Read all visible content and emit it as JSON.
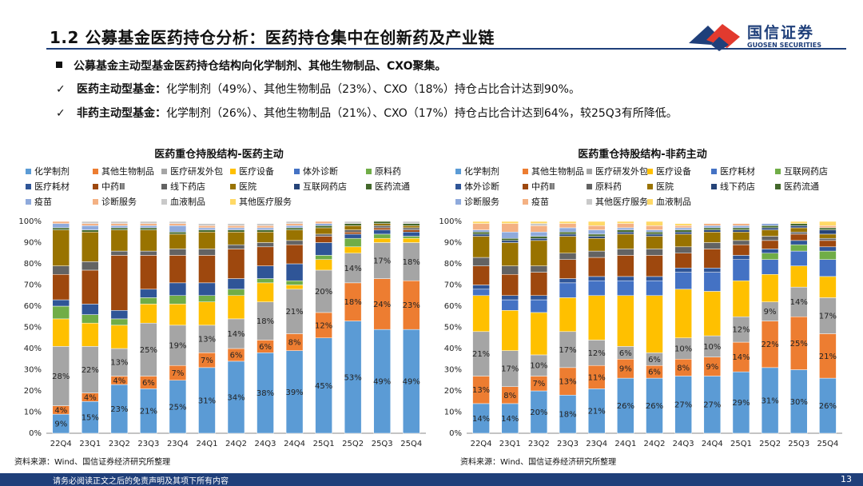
{
  "page": {
    "title": "1.2 公募基金医药持仓分析：医药持仓集中在创新药及产业链",
    "logo_cn": "国信证券",
    "logo_en": "GUOSEN SECURITIES",
    "bullets": [
      {
        "mark": "■",
        "bold": "公募基金主动型基金医药持仓结构向化学制剂、其他生物制品、CXO聚集。",
        "text": ""
      },
      {
        "mark": "✓",
        "bold": "医药主动型基金：",
        "text": "化学制剂（49%）、其他生物制品（23%）、CXO（18%）持仓占比合计达到90%。"
      },
      {
        "mark": "✓",
        "bold": "非药主动型基金：",
        "text": "化学制剂（26%）、其他生物制品（21%）、CXO（17%）持仓占比合计达到64%，较25Q3有所降低。"
      }
    ],
    "footer_disclaimer": "请务必阅读正文之后的免责声明及其项下所有内容",
    "page_number": "13",
    "colors": {
      "brand": "#1f3f7a",
      "logo_red": "#e23a2e"
    }
  },
  "chart_data": [
    {
      "type": "bar",
      "stacked": true,
      "title": "医药重仓持股结构-医药主动",
      "source": "资料来源：Wind、国信证券经济研究所整理",
      "categories": [
        "22Q4",
        "23Q1",
        "23Q2",
        "23Q3",
        "23Q4",
        "24Q1",
        "24Q2",
        "24Q3",
        "24Q4",
        "25Q1",
        "25Q2",
        "25Q3",
        "25Q4"
      ],
      "ylim": [
        0,
        100
      ],
      "yticks": [
        "0%",
        "10%",
        "20%",
        "30%",
        "40%",
        "50%",
        "60%",
        "70%",
        "80%",
        "90%",
        "100%"
      ],
      "grid": false,
      "legend_position": "top",
      "series": [
        {
          "name": "化学制剂",
          "color": "#5b9bd5",
          "values": [
            9,
            15,
            23,
            21,
            25,
            31,
            34,
            38,
            39,
            45,
            53,
            49,
            49
          ],
          "labels": [
            "9%",
            "15%",
            "23%",
            "21%",
            "25%",
            "31%",
            "34%",
            "38%",
            "39%",
            "45%",
            "53%",
            "49%",
            "49%"
          ]
        },
        {
          "name": "其他生物制品",
          "color": "#ed7d31",
          "values": [
            4,
            4,
            4,
            6,
            7,
            7,
            6,
            6,
            8,
            12,
            18,
            24,
            23
          ],
          "labels": [
            "4%",
            "4%",
            "4%",
            "6%",
            "7%",
            "7%",
            "6%",
            "6%",
            "8%",
            "12%",
            "18%",
            "24%",
            "23%"
          ]
        },
        {
          "name": "医疗研发外包",
          "color": "#a5a5a5",
          "values": [
            28,
            22,
            13,
            25,
            19,
            13,
            14,
            18,
            21,
            20,
            14,
            17,
            18
          ],
          "labels": [
            "28%",
            "22%",
            "13%",
            "25%",
            "19%",
            "13%",
            "14%",
            "18%",
            "21%",
            "20%",
            "14%",
            "17%",
            "18%"
          ]
        },
        {
          "name": "医疗设备",
          "color": "#ffc000",
          "values": [
            13,
            11,
            11,
            9,
            10,
            11,
            11,
            9,
            2,
            5,
            3,
            2,
            2
          ]
        },
        {
          "name": "体外诊断",
          "color": "#4472c4",
          "values": [
            0,
            0,
            0,
            0,
            0,
            0,
            0,
            0,
            0,
            0,
            0,
            0,
            0
          ]
        },
        {
          "name": "原料药",
          "color": "#70ad47",
          "values": [
            6,
            4,
            3,
            3,
            4,
            3,
            3,
            2,
            2,
            2,
            4,
            2,
            1
          ]
        },
        {
          "name": "医疗耗材",
          "color": "#2f5597",
          "values": [
            3,
            5,
            4,
            4,
            6,
            6,
            5,
            6,
            8,
            6,
            2,
            2,
            2
          ]
        },
        {
          "name": "中药Ⅲ",
          "color": "#9e480e",
          "values": [
            12,
            16,
            26,
            16,
            13,
            13,
            14,
            9,
            9,
            3,
            1,
            1,
            1
          ]
        },
        {
          "name": "线下药店",
          "color": "#636363",
          "values": [
            4,
            4,
            2,
            2,
            3,
            3,
            2,
            2,
            2,
            1,
            1,
            1,
            1
          ]
        },
        {
          "name": "医院",
          "color": "#997300",
          "values": [
            17,
            14,
            10,
            10,
            7,
            8,
            6,
            5,
            5,
            3,
            2,
            1,
            1
          ]
        },
        {
          "name": "互联网药店",
          "color": "#264478",
          "values": [
            0,
            0,
            0,
            0,
            0,
            0,
            0,
            0,
            0,
            0,
            0,
            0,
            0
          ]
        },
        {
          "name": "医药流通",
          "color": "#43682b",
          "values": [
            1,
            1,
            1,
            1,
            1,
            1,
            1,
            1,
            1,
            1,
            1,
            1,
            1
          ]
        },
        {
          "name": "疫苗",
          "color": "#8faadc",
          "values": [
            2,
            2,
            1,
            1,
            3,
            1,
            1,
            1,
            1,
            1,
            0,
            0,
            0
          ]
        },
        {
          "name": "诊断服务",
          "color": "#f4b183",
          "values": [
            1,
            1,
            1,
            1,
            1,
            1,
            1,
            1,
            1,
            1,
            0,
            0,
            0
          ]
        },
        {
          "name": "血液制品",
          "color": "#c9c9c9",
          "values": [
            0,
            1,
            1,
            1,
            1,
            1,
            1,
            1,
            1,
            0,
            1,
            0,
            1
          ]
        },
        {
          "name": "其他医疗服务",
          "color": "#ffd966",
          "values": [
            0,
            0,
            0,
            0,
            0,
            0,
            0,
            0,
            0,
            0,
            0,
            0,
            0
          ]
        }
      ]
    },
    {
      "type": "bar",
      "stacked": true,
      "title": "医药重仓持股结构-非药主动",
      "source": "资料来源：Wind、国信证券经济研究所整理",
      "categories": [
        "22Q4",
        "23Q1",
        "23Q2",
        "23Q3",
        "23Q4",
        "24Q1",
        "24Q2",
        "24Q3",
        "24Q4",
        "25Q1",
        "25Q2",
        "25Q3",
        "25Q4"
      ],
      "ylim": [
        0,
        100
      ],
      "yticks": [
        "0%",
        "10%",
        "20%",
        "30%",
        "40%",
        "50%",
        "60%",
        "70%",
        "80%",
        "90%",
        "100%"
      ],
      "grid": false,
      "legend_position": "top",
      "series": [
        {
          "name": "化学制剂",
          "color": "#5b9bd5",
          "values": [
            14,
            14,
            20,
            18,
            21,
            26,
            26,
            27,
            27,
            29,
            31,
            30,
            26
          ],
          "labels": [
            "14%",
            "14%",
            "20%",
            "18%",
            "21%",
            "26%",
            "26%",
            "27%",
            "27%",
            "29%",
            "31%",
            "30%",
            "26%"
          ]
        },
        {
          "name": "其他生物制品",
          "color": "#ed7d31",
          "values": [
            13,
            8,
            7,
            13,
            11,
            9,
            6,
            8,
            9,
            14,
            22,
            25,
            21
          ],
          "labels": [
            "13%",
            "8%",
            "7%",
            "13%",
            "11%",
            "9%",
            "6%",
            "8%",
            "9%",
            "14%",
            "22%",
            "25%",
            "21%"
          ]
        },
        {
          "name": "医疗研发外包",
          "color": "#a5a5a5",
          "values": [
            21,
            17,
            10,
            17,
            12,
            6,
            6,
            10,
            10,
            12,
            9,
            14,
            17
          ],
          "labels": [
            "21%",
            "17%",
            "10%",
            "17%",
            "12%",
            "6%",
            "6%",
            "10%",
            "10%",
            "12%",
            "9%",
            "14%",
            "17%"
          ]
        },
        {
          "name": "医疗设备",
          "color": "#ffc000",
          "values": [
            17,
            19,
            20,
            16,
            21,
            24,
            27,
            23,
            21,
            17,
            13,
            10,
            10
          ]
        },
        {
          "name": "医疗耗材",
          "color": "#4472c4",
          "values": [
            3,
            5,
            6,
            7,
            7,
            7,
            7,
            8,
            9,
            10,
            7,
            7,
            8
          ]
        },
        {
          "name": "互联网药店",
          "color": "#70ad47",
          "values": [
            0,
            0,
            0,
            0,
            0,
            0,
            0,
            0,
            0,
            0,
            3,
            3,
            4
          ]
        },
        {
          "name": "体外诊断",
          "color": "#2f5597",
          "values": [
            2,
            2,
            2,
            2,
            2,
            2,
            2,
            2,
            2,
            2,
            2,
            2,
            2
          ]
        },
        {
          "name": "中药Ⅲ",
          "color": "#9e480e",
          "values": [
            9,
            10,
            11,
            9,
            9,
            10,
            10,
            7,
            9,
            5,
            4,
            3,
            3
          ]
        },
        {
          "name": "原料药",
          "color": "#636363",
          "values": [
            4,
            4,
            3,
            3,
            3,
            3,
            3,
            3,
            3,
            2,
            2,
            1,
            1
          ]
        },
        {
          "name": "医院",
          "color": "#997300",
          "values": [
            10,
            11,
            12,
            8,
            6,
            7,
            6,
            6,
            5,
            4,
            3,
            2,
            2
          ]
        },
        {
          "name": "线下药店",
          "color": "#264478",
          "values": [
            1,
            1,
            1,
            1,
            1,
            1,
            1,
            1,
            1,
            1,
            1,
            1,
            2
          ]
        },
        {
          "name": "医药流通",
          "color": "#43682b",
          "values": [
            1,
            1,
            1,
            1,
            1,
            1,
            1,
            1,
            1,
            1,
            1,
            1,
            1
          ]
        },
        {
          "name": "诊断服务",
          "color": "#8faadc",
          "values": [
            1,
            3,
            2,
            2,
            2,
            1,
            1,
            1,
            1,
            1,
            1,
            0,
            0
          ]
        },
        {
          "name": "疫苗",
          "color": "#f4b183",
          "values": [
            3,
            4,
            3,
            2,
            2,
            2,
            2,
            1,
            1,
            1,
            0,
            0,
            1
          ]
        },
        {
          "name": "其他医疗服务",
          "color": "#c9c9c9",
          "values": [
            0,
            0,
            1,
            0,
            0,
            0,
            0,
            0,
            0,
            0,
            0,
            0,
            0
          ]
        },
        {
          "name": "血液制品",
          "color": "#ffd966",
          "values": [
            1,
            1,
            1,
            1,
            2,
            1,
            2,
            1,
            0,
            0,
            0,
            1,
            2
          ]
        }
      ]
    }
  ]
}
